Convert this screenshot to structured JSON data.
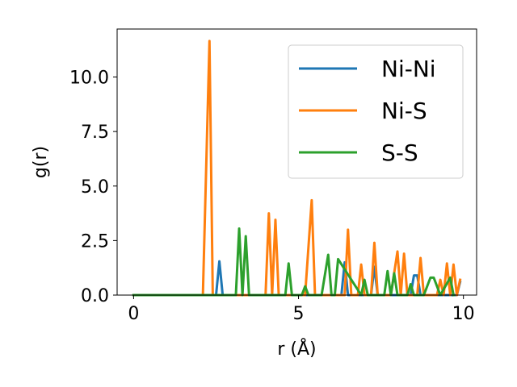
{
  "chart_data": {
    "type": "line",
    "title": "",
    "xlabel": "r (Å)",
    "ylabel": "g(r)",
    "xlim": [
      -0.5,
      10.4
    ],
    "ylim": [
      0.0,
      12.2
    ],
    "xticks": [
      0,
      5,
      10
    ],
    "xtick_labels": [
      "0",
      "5",
      "10"
    ],
    "yticks": [
      0.0,
      2.5,
      5.0,
      7.5,
      10.0
    ],
    "ytick_labels": [
      "0.0",
      "2.5",
      "5.0",
      "7.5",
      "10.0"
    ],
    "grid": false,
    "legend_position": "top-right",
    "series": [
      {
        "name": "Ni-Ni",
        "color": "#1f77b4",
        "x": [
          0,
          2.5,
          2.6,
          2.7,
          6.3,
          6.4,
          6.5,
          7.2,
          7.3,
          7.4,
          8.4,
          8.5,
          8.6,
          8.7,
          9.8,
          9.9
        ],
        "y": [
          0,
          0,
          1.55,
          0,
          0,
          1.5,
          0,
          0,
          1.3,
          0,
          0,
          0.9,
          0.9,
          0,
          0,
          0.6
        ]
      },
      {
        "name": "Ni-S",
        "color": "#ff7f0e",
        "x": [
          0,
          2.1,
          2.3,
          2.4,
          4.0,
          4.1,
          4.2,
          4.3,
          4.4,
          5.2,
          5.4,
          5.5,
          6.4,
          6.5,
          6.6,
          6.8,
          6.9,
          7.0,
          7.2,
          7.3,
          7.4,
          7.8,
          8.0,
          8.1,
          8.2,
          8.3,
          8.4,
          8.6,
          8.7,
          8.8,
          9.2,
          9.3,
          9.4,
          9.5,
          9.6,
          9.7,
          9.8,
          9.9
        ],
        "y": [
          0,
          0,
          11.65,
          0,
          0,
          3.75,
          0,
          3.45,
          0,
          0,
          4.35,
          0,
          0,
          3.0,
          0,
          0,
          1.4,
          0,
          0,
          2.4,
          0,
          0,
          2.0,
          0,
          1.9,
          0,
          0,
          0,
          1.7,
          0,
          0,
          0.7,
          0,
          1.45,
          0,
          1.4,
          0,
          0.7
        ]
      },
      {
        "name": "S-S",
        "color": "#2ca02c",
        "x": [
          0,
          3.1,
          3.2,
          3.3,
          3.4,
          3.5,
          4.6,
          4.7,
          4.8,
          5.1,
          5.2,
          5.3,
          5.7,
          5.9,
          6.0,
          6.1,
          6.2,
          6.9,
          7.0,
          7.1,
          7.6,
          7.7,
          7.8,
          7.9,
          8.0,
          8.3,
          8.4,
          8.5,
          8.6,
          8.8,
          9.0,
          9.1,
          9.3,
          9.6,
          9.7
        ],
        "y": [
          0,
          0,
          3.05,
          0,
          2.7,
          0,
          0,
          1.45,
          0,
          0,
          0.4,
          0,
          0,
          1.85,
          0,
          0,
          1.65,
          0,
          0.7,
          0,
          0,
          1.1,
          0,
          1.0,
          0,
          0,
          0.5,
          0,
          0,
          0,
          0.8,
          0.8,
          0,
          0.8,
          0
        ]
      }
    ]
  }
}
